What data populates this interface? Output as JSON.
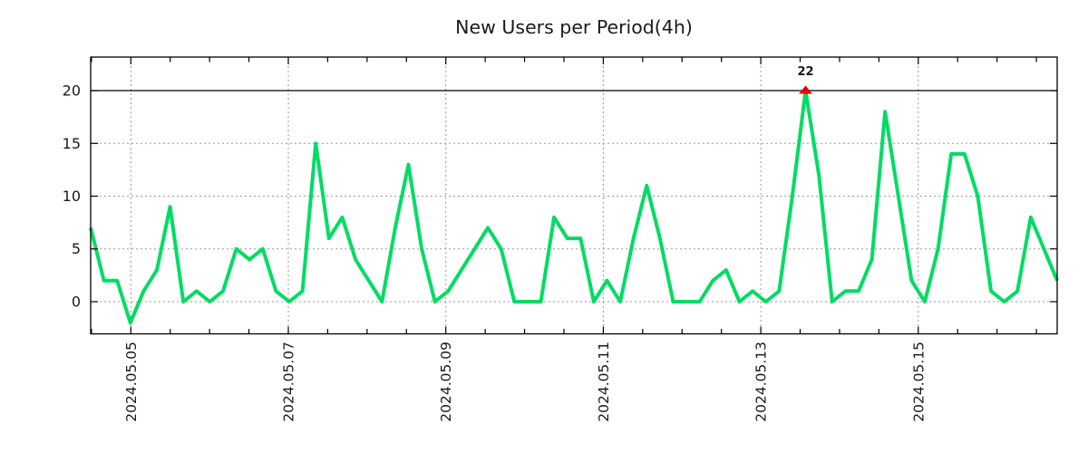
{
  "title": "New Users per Period(4h)",
  "colors": {
    "line": "#00dc64",
    "annotation_text": "#00c05a",
    "marker": "#e60000",
    "grid": "#9a9a9a",
    "axis": "#000000",
    "text": "#1a1a1a",
    "background": "#ffffff"
  },
  "y_axis": {
    "tick_labels": [
      "0",
      "5",
      "10",
      "15",
      "20"
    ]
  },
  "x_axis": {
    "tick_labels": [
      "2024.05.05",
      "2024.05.07",
      "2024.05.09",
      "2024.05.11",
      "2024.05.13",
      "2024.05.15"
    ]
  },
  "annotation": {
    "label": "22"
  },
  "chart_data": {
    "type": "line",
    "title": "New Users per Period(4h)",
    "period": "4h",
    "x_tick_labels": [
      "2024.05.05",
      "2024.05.07",
      "2024.05.09",
      "2024.05.11",
      "2024.05.13",
      "2024.05.15"
    ],
    "y_ticks": [
      0,
      5,
      10,
      15,
      20
    ],
    "ylim": [
      -3.05,
      23.18
    ],
    "grid": true,
    "legend": false,
    "threshold_line": 20,
    "clip_max": 20,
    "annotation": {
      "label": "22",
      "value": 22,
      "point_index": 54
    },
    "series": [
      {
        "name": "New Users",
        "values": [
          7,
          2,
          2,
          -2,
          1,
          3,
          9,
          0,
          1,
          0,
          1,
          5,
          4,
          5,
          1,
          0,
          1,
          15,
          6,
          8,
          4,
          2,
          0,
          7,
          13,
          5,
          0,
          1,
          3,
          5,
          7,
          5,
          0,
          0,
          0,
          8,
          6,
          6,
          0,
          2,
          0,
          6,
          11,
          6,
          0,
          0,
          0,
          2,
          3,
          0,
          1,
          0,
          1,
          10,
          22,
          12,
          0,
          1,
          1,
          4,
          18,
          10,
          2,
          0,
          5,
          14,
          14,
          10,
          1,
          0,
          1,
          8,
          5,
          2
        ]
      }
    ]
  }
}
